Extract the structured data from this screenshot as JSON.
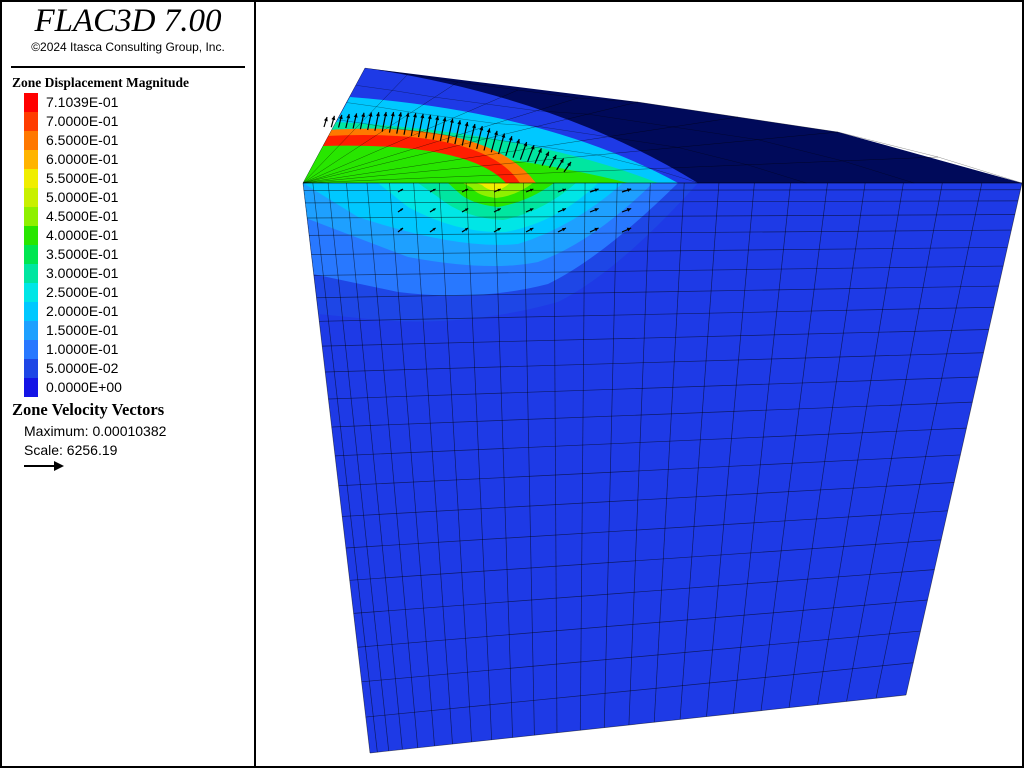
{
  "header": {
    "app_title": "FLAC3D 7.00",
    "copyright": "©2024 Itasca Consulting Group, Inc."
  },
  "displacement_legend": {
    "title": "Zone Displacement Magnitude",
    "levels": [
      {
        "label": "7.1039E-01",
        "color": "#ff0000"
      },
      {
        "label": "7.0000E-01",
        "color": "#ff3c00"
      },
      {
        "label": "6.5000E-01",
        "color": "#ff7800"
      },
      {
        "label": "6.0000E-01",
        "color": "#ffb400"
      },
      {
        "label": "5.5000E-01",
        "color": "#f0ee00"
      },
      {
        "label": "5.0000E-01",
        "color": "#c8f000"
      },
      {
        "label": "4.5000E-01",
        "color": "#8ef000"
      },
      {
        "label": "4.0000E-01",
        "color": "#28e600"
      },
      {
        "label": "3.5000E-01",
        "color": "#00e650"
      },
      {
        "label": "3.0000E-01",
        "color": "#00e6a0"
      },
      {
        "label": "2.5000E-01",
        "color": "#00e6e6"
      },
      {
        "label": "2.0000E-01",
        "color": "#00c8ff"
      },
      {
        "label": "1.5000E-01",
        "color": "#1ea0ff"
      },
      {
        "label": "1.0000E-01",
        "color": "#2878ff"
      },
      {
        "label": "5.0000E-02",
        "color": "#1e46e6"
      },
      {
        "label": "0.0000E+00",
        "color": "#1414e6"
      }
    ]
  },
  "velocity_legend": {
    "title": "Zone Velocity Vectors",
    "maximum": "Maximum: 0.00010382",
    "scale": "Scale: 6256.19"
  },
  "viewport": {
    "top_face_color": "#000a5a",
    "side_face_color": "#1e3ae6",
    "mesh_line_color": "#000000",
    "vector_color": "#000000"
  }
}
